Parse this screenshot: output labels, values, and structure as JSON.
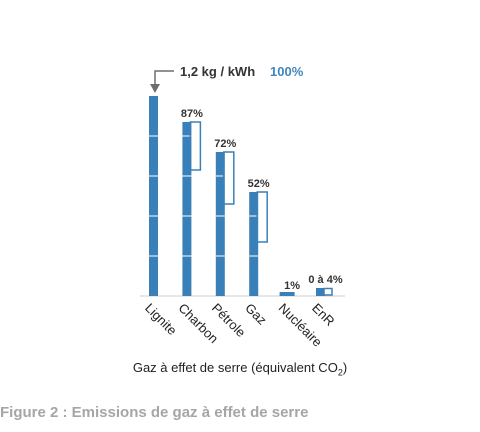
{
  "chart_data": {
    "type": "bar",
    "categories": [
      "Lignite",
      "Charbon",
      "Pétrole",
      "Gaz",
      "Nucléaire",
      "EnR"
    ],
    "values": [
      100,
      87,
      72,
      52,
      1,
      4
    ],
    "range_min": [
      null,
      63,
      46,
      27,
      null,
      0
    ],
    "data_labels": [
      "",
      "87%",
      "72%",
      "52%",
      "1%",
      "0 à 4%"
    ],
    "ylim": [
      0,
      100
    ],
    "colors": {
      "bar": "#3a80b8",
      "outline": "#3a80b8",
      "separator": "#ffffff",
      "pointer": "#6e6e6e"
    },
    "annotation": {
      "text": "1,2 kg / kWh",
      "pct": "100%"
    },
    "xlabel_main": "Gaz à effet de serre (équivalent CO",
    "xlabel_sub": "2",
    "xlabel_end": ")"
  },
  "figure": {
    "title": "Figure 2 : Emissions de gaz à effet de serre"
  }
}
